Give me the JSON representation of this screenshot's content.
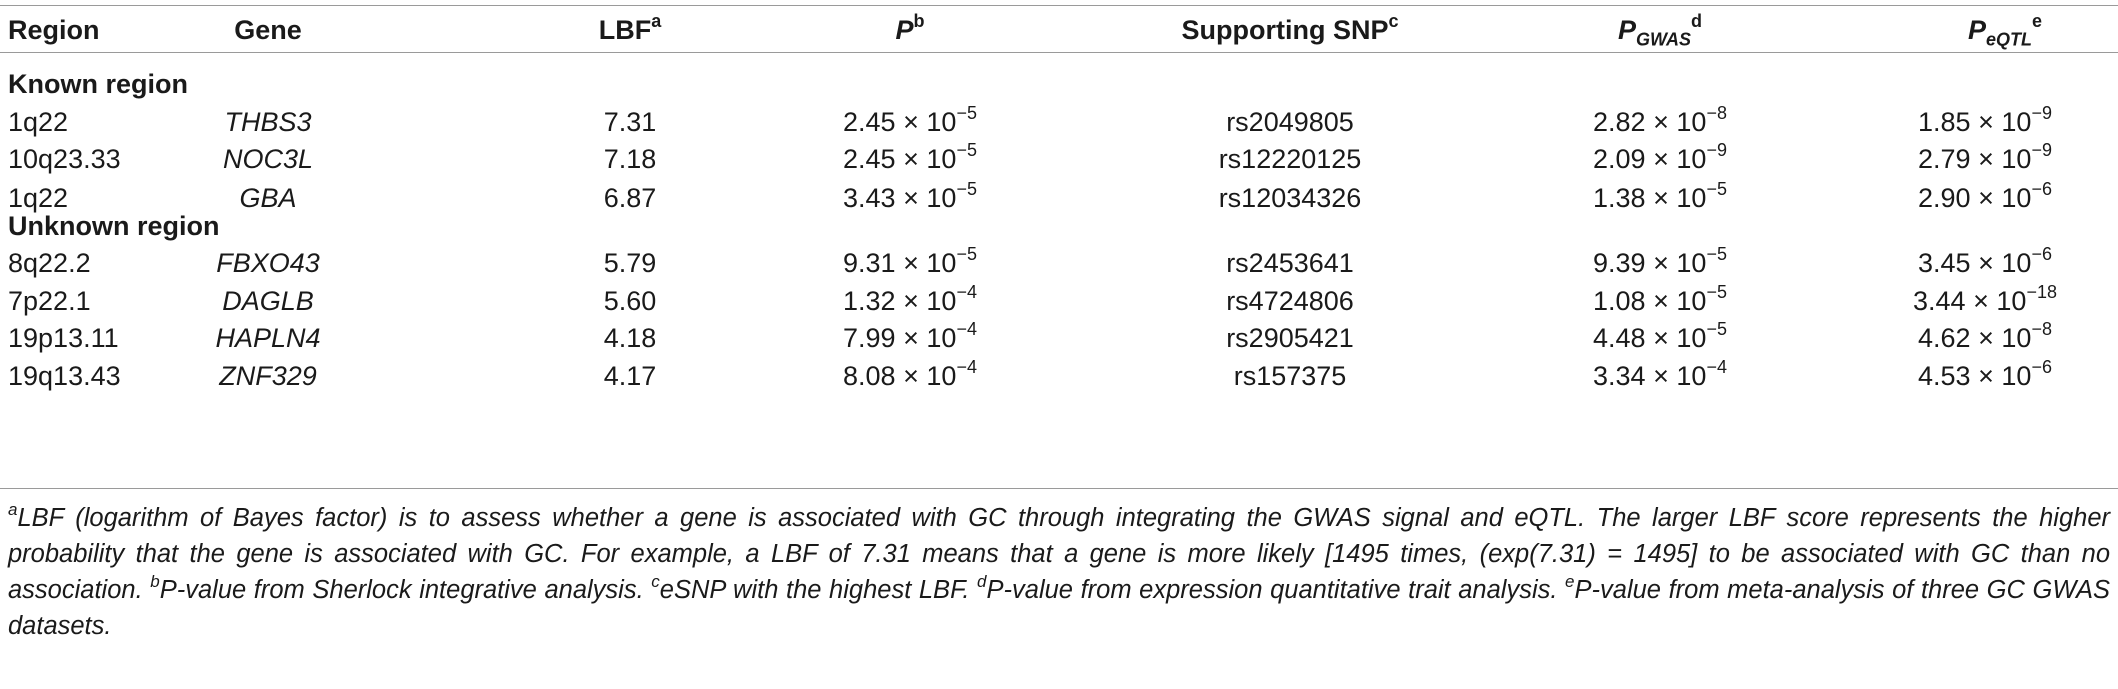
{
  "table": {
    "headers": {
      "region": "Region",
      "gene": "Gene",
      "lbf": "LBF",
      "lbf_sup": "a",
      "p": "P",
      "p_sup": "b",
      "snp": "Supporting SNP",
      "snp_sup": "c",
      "pgwas": "P",
      "pgwas_sub": "GWAS",
      "pgwas_sup": "d",
      "peqtl": "P",
      "peqtl_sub": "eQTL",
      "peqtl_sup": "e"
    },
    "times": "×",
    "ten": "10",
    "sections": [
      {
        "title": "Known region",
        "rows": [
          {
            "region": "1q22",
            "gene": "THBS3",
            "lbf": "7.31",
            "p_m": "2.45",
            "p_e": "−5",
            "snp": "rs2049805",
            "pg_m": "2.82",
            "pg_e": "−8",
            "pe_m": "1.85",
            "pe_e": "−9"
          },
          {
            "region": "10q23.33",
            "gene": "NOC3L",
            "lbf": "7.18",
            "p_m": "2.45",
            "p_e": "−5",
            "snp": "rs12220125",
            "pg_m": "2.09",
            "pg_e": "−9",
            "pe_m": "2.79",
            "pe_e": "−9"
          },
          {
            "region": "1q22",
            "gene": "GBA",
            "lbf": "6.87",
            "p_m": "3.43",
            "p_e": "−5",
            "snp": "rs12034326",
            "pg_m": "1.38",
            "pg_e": "−5",
            "pe_m": "2.90",
            "pe_e": "−6"
          }
        ]
      },
      {
        "title": "Unknown region",
        "rows": [
          {
            "region": "8q22.2",
            "gene": "FBXO43",
            "lbf": "5.79",
            "p_m": "9.31",
            "p_e": "−5",
            "snp": "rs2453641",
            "pg_m": "9.39",
            "pg_e": "−5",
            "pe_m": "3.45",
            "pe_e": "−6"
          },
          {
            "region": "7p22.1",
            "gene": "DAGLB",
            "lbf": "5.60",
            "p_m": "1.32",
            "p_e": "−4",
            "snp": "rs4724806",
            "pg_m": "1.08",
            "pg_e": "−5",
            "pe_m": "3.44",
            "pe_e": "−18"
          },
          {
            "region": "19p13.11",
            "gene": "HAPLN4",
            "lbf": "4.18",
            "p_m": "7.99",
            "p_e": "−4",
            "snp": "rs2905421",
            "pg_m": "4.48",
            "pg_e": "−5",
            "pe_m": "4.62",
            "pe_e": "−8"
          },
          {
            "region": "19q13.43",
            "gene": "ZNF329",
            "lbf": "4.17",
            "p_m": "8.08",
            "p_e": "−4",
            "snp": "rs157375",
            "pg_m": "3.34",
            "pg_e": "−4",
            "pe_m": "4.53",
            "pe_e": "−6"
          }
        ]
      }
    ]
  },
  "footnote": {
    "a_mark": "a",
    "a_text": "LBF (logarithm of Bayes factor) is to assess whether a gene is associated with GC through integrating the GWAS signal and eQTL. The larger LBF score represents the higher probability that the gene is associated with GC. For example, a LBF of 7.31 means that a gene is more likely [1495 times, (exp(7.31) = 1495] to be associated with GC than no association. ",
    "b_mark": "b",
    "b_text": "P-value from Sherlock integrative analysis. ",
    "c_mark": "c",
    "c_text": "eSNP with the highest LBF. ",
    "d_mark": "d",
    "d_text": "P-value from expression quantitative trait analysis. ",
    "e_mark": "e",
    "e_text": "P-value from meta-analysis of three GC GWAS datasets."
  }
}
